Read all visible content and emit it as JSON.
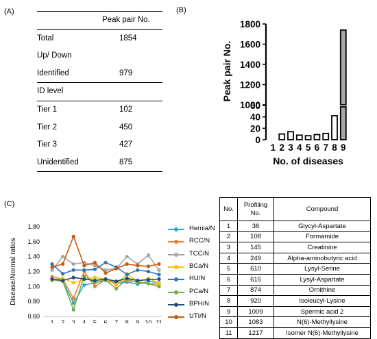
{
  "panels": {
    "a": "(A)",
    "b": "(B)",
    "c": "(C)"
  },
  "table_a": {
    "header": "Peak pair No.",
    "rows": [
      {
        "label": "Total",
        "value": "1854"
      },
      {
        "label": "Up/ Down",
        "value": ""
      },
      {
        "label": "Identified",
        "value": "979"
      },
      {
        "label": "ID level",
        "value": ""
      },
      {
        "label": "Tier 1",
        "value": "102"
      },
      {
        "label": "Tier 2",
        "value": "450"
      },
      {
        "label": "Tier 3",
        "value": "427"
      },
      {
        "label": "Unidentified",
        "value": "875"
      }
    ]
  },
  "chart_data": [
    {
      "type": "bar",
      "panel": "B",
      "xlabel": "No. of diseases",
      "ylabel": "Peak pair No.",
      "categories": [
        "1",
        "2",
        "3",
        "4",
        "5",
        "6",
        "7",
        "8",
        "9"
      ],
      "values": [
        0,
        10,
        14,
        8,
        7,
        9,
        11,
        42,
        1740
      ],
      "broken_axis": {
        "lower_ylim": [
          0,
          60
        ],
        "upper_ylim": [
          1000,
          1800
        ]
      },
      "lower_yticks": [
        "0",
        "20",
        "40",
        "60"
      ],
      "upper_yticks": [
        "1000",
        "1200",
        "1400",
        "1600",
        "1800"
      ],
      "colors": {
        "default": "#ffffff",
        "highlight": "#a6a6a6"
      }
    },
    {
      "type": "line",
      "panel": "C",
      "ylabel": "Disease/Normal ratios",
      "x": [
        1,
        2,
        3,
        4,
        5,
        6,
        7,
        8,
        9,
        10,
        11
      ],
      "ylim": [
        0.6,
        1.8
      ],
      "yticks": [
        "0.60",
        "0.80",
        "1.00",
        "1.20",
        "1.40",
        "1.60",
        "1.80"
      ],
      "series": [
        {
          "name": "Hernia/N",
          "color": "#2ea7c9",
          "values": [
            1.1,
            1.07,
            0.78,
            1.02,
            1.05,
            1.08,
            1.04,
            1.06,
            1.03,
            1.07,
            1.05
          ]
        },
        {
          "name": "RCC/N",
          "color": "#ed7d31",
          "values": [
            1.13,
            1.1,
            0.84,
            1.2,
            1.0,
            1.09,
            1.06,
            1.08,
            1.06,
            1.04,
            1.03
          ]
        },
        {
          "name": "TCC/N",
          "color": "#a5a5a5",
          "values": [
            1.22,
            1.4,
            1.3,
            1.32,
            1.28,
            1.22,
            1.24,
            1.4,
            1.3,
            1.42,
            1.22
          ]
        },
        {
          "name": "BCa/N",
          "color": "#ffc000",
          "values": [
            1.08,
            1.11,
            1.05,
            1.09,
            1.12,
            1.1,
            1.02,
            1.17,
            1.06,
            1.11,
            1.04
          ]
        },
        {
          "name": "HU/N",
          "color": "#2e75b6",
          "values": [
            1.3,
            1.17,
            1.22,
            1.22,
            1.23,
            1.32,
            1.26,
            1.16,
            1.22,
            1.2,
            1.16
          ]
        },
        {
          "name": "PCa/N",
          "color": "#70ad47",
          "values": [
            1.09,
            1.07,
            0.69,
            1.14,
            1.05,
            1.09,
            0.97,
            1.1,
            1.05,
            1.04,
            1.0
          ]
        },
        {
          "name": "BPH/N",
          "color": "#1f4e79",
          "values": [
            1.1,
            1.08,
            1.12,
            1.1,
            1.08,
            1.1,
            1.07,
            1.11,
            1.08,
            1.09,
            1.1
          ]
        },
        {
          "name": "UTI/N",
          "color": "#c55a11",
          "values": [
            1.26,
            1.3,
            1.67,
            1.28,
            1.32,
            1.18,
            1.24,
            1.3,
            1.28,
            1.27,
            1.3
          ]
        }
      ]
    }
  ],
  "table_c": {
    "headers": [
      "No.",
      "Profiling No.",
      "Compound"
    ],
    "rows": [
      [
        "1",
        "36",
        "Glycyl-Aspartate"
      ],
      [
        "2",
        "108",
        "Formamide"
      ],
      [
        "3",
        "145",
        "Creatinine"
      ],
      [
        "4",
        "249",
        "Alpha-aminobutyric acid"
      ],
      [
        "5",
        "610",
        "Lysyl-Serine"
      ],
      [
        "6",
        "615",
        "Lysyl-Aspartate"
      ],
      [
        "7",
        "874",
        "Ornithine"
      ],
      [
        "8",
        "920",
        "Isoleucyl-Lysine"
      ],
      [
        "9",
        "1009",
        "Spermic acid 2"
      ],
      [
        "10",
        "1083",
        "N(6)-Methyllysine"
      ],
      [
        "11",
        "1217",
        "Isomer N(6)-Methyllysine"
      ]
    ]
  }
}
